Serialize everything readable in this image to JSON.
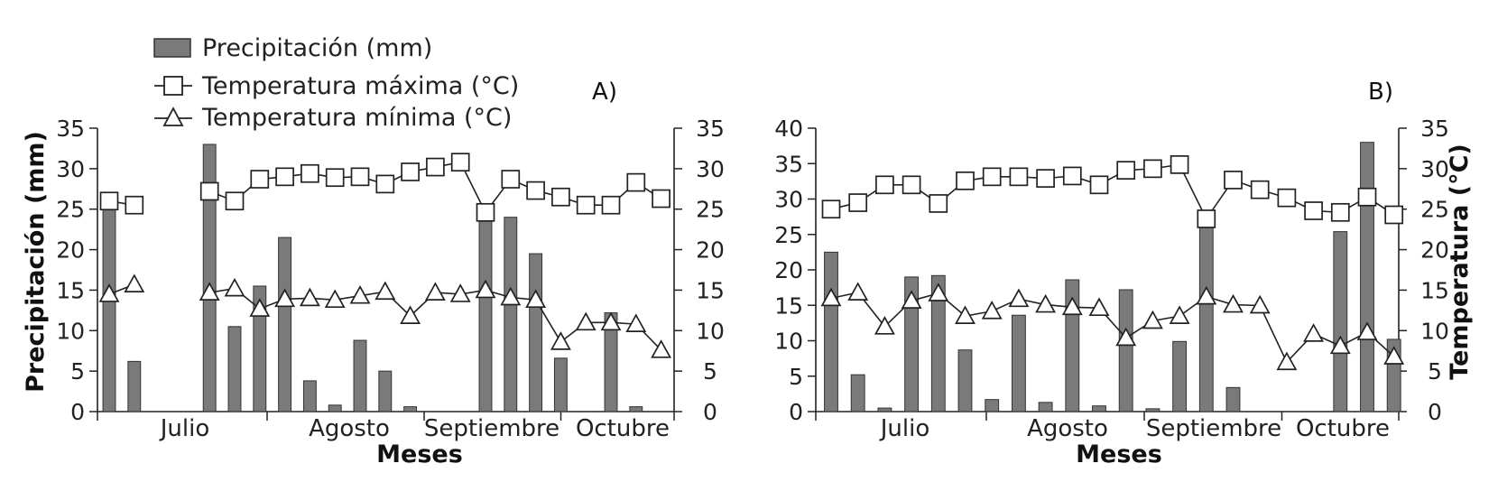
{
  "legend": {
    "precip": "Precipitación (mm)",
    "tmax": "Temperatura máxima (°C)",
    "tmin": "Temperatura mínima (°C)"
  },
  "colors": {
    "bar": "#7a7a7a",
    "bar_edge": "#333333",
    "line": "#222222",
    "marker_fill": "#ffffff"
  },
  "chart_data": [
    {
      "type": "bar",
      "panel_label": "A)",
      "xlabel": "Meses",
      "ylabel": "Precipitación (mm)",
      "y2label": "",
      "months": [
        "Julio",
        "Agosto",
        "Septiembre",
        "Octubre"
      ],
      "ylim": [
        0,
        35
      ],
      "yticks": [
        0,
        5,
        10,
        15,
        20,
        25,
        30,
        35
      ],
      "y2lim": [
        0,
        35
      ],
      "y2ticks": [
        0,
        5,
        10,
        15,
        20,
        25,
        30,
        35
      ],
      "precip": [
        26,
        6.2,
        0,
        0,
        33,
        10.5,
        15.5,
        21.5,
        3.8,
        0.8,
        8.8,
        5,
        0.6,
        0,
        0,
        24,
        24,
        19.5,
        6.6,
        0,
        12.2,
        0.6,
        0,
        0
      ],
      "tmax": [
        26,
        25.5,
        null,
        null,
        27.2,
        26,
        28.7,
        29,
        29.4,
        28.9,
        29,
        28.1,
        29.6,
        30.2,
        30.8,
        24.6,
        28.7,
        27.3,
        26.5,
        25.5,
        25.5,
        28.3,
        26.3,
        null
      ],
      "tmin": [
        14.5,
        15.7,
        null,
        null,
        14.7,
        15.2,
        12.7,
        13.9,
        14,
        13.8,
        14.3,
        14.8,
        11.8,
        14.7,
        14.5,
        15,
        14.1,
        13.8,
        8.6,
        11,
        11,
        10.8,
        7.6,
        null
      ]
    },
    {
      "type": "bar",
      "panel_label": "B)",
      "xlabel": "Meses",
      "ylabel": "",
      "y2label": "Temperatura (°C)",
      "months": [
        "Julio",
        "Agosto",
        "Septiembre",
        "Octubre"
      ],
      "ylim": [
        0,
        40
      ],
      "yticks": [
        0,
        5,
        10,
        15,
        20,
        25,
        30,
        35,
        40
      ],
      "y2lim": [
        0,
        35
      ],
      "y2ticks": [
        0,
        5,
        10,
        15,
        20,
        25,
        30,
        35
      ],
      "precip": [
        22.5,
        5.2,
        0.5,
        19,
        19.2,
        8.7,
        1.7,
        13.6,
        1.3,
        18.6,
        0.8,
        17.2,
        0.4,
        9.9,
        27,
        3.4,
        0,
        0,
        0,
        25.4,
        38,
        10.2
      ],
      "tmax": [
        25,
        25.8,
        28,
        28,
        25.7,
        28.5,
        29,
        29,
        28.8,
        29.1,
        28,
        29.8,
        30,
        30.5,
        23.8,
        28.6,
        27.4,
        26.4,
        24.8,
        24.6,
        26.5,
        24.3
      ],
      "tmin": [
        14,
        14.7,
        10.5,
        13.7,
        14.6,
        11.8,
        12.4,
        13.9,
        13.2,
        12.9,
        12.8,
        9.1,
        11.2,
        11.8,
        14.2,
        13.2,
        13.1,
        6.1,
        9.6,
        8.1,
        9.8,
        6.8
      ]
    }
  ]
}
